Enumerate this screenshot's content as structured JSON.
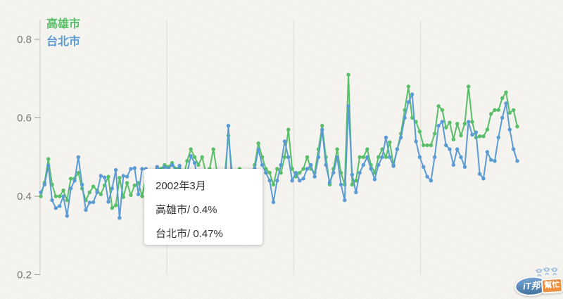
{
  "legend": {
    "items": [
      {
        "label": "高雄市",
        "color": "#58bf68"
      },
      {
        "label": "台北市",
        "color": "#5b9bd5"
      }
    ]
  },
  "tooltip": {
    "title": "2002年3月",
    "lines": [
      {
        "text": "高雄市/ 0.4%"
      },
      {
        "text": "台北市/ 0.47%"
      }
    ]
  },
  "watermark": {
    "primary": "iT邦",
    "secondary": "幫忙"
  },
  "colors": {
    "kaohsiung_green": "#58bf68",
    "taipei_blue": "#5b9bd5",
    "background": "#f5f4ef",
    "gridline": "#dcdcd8",
    "axis": "#c8c8c4",
    "tick": "#9a9a96",
    "tick_label": "#757575",
    "tooltip_text": "#333333",
    "logo_blue": "#44749f",
    "logo_orange": "#ee8f40"
  },
  "chart_data": {
    "type": "line",
    "title": "",
    "xlabel": "",
    "ylabel": "",
    "x_unit": "month (no x tick labels shown; hovered month is 2002年3月)",
    "ylim": [
      0.2,
      0.85
    ],
    "yticks": [
      {
        "label": "0.8",
        "value": 0.8
      },
      {
        "label": "0.6",
        "value": 0.6
      },
      {
        "label": "0.4",
        "value": 0.4
      },
      {
        "label": "0.2",
        "value": 0.2
      }
    ],
    "grid": "vertical gridlines only",
    "legend_position": "top-left",
    "vertical_gridline_indices": [
      33.6,
      67.4,
      101.2
    ],
    "highlighted_point": {
      "index": 27,
      "label": "2002年3月",
      "高雄市": 0.4,
      "台北市": 0.47
    },
    "series": [
      {
        "name": "高雄市",
        "color": "#58bf68",
        "values": [
          0.4,
          0.435,
          0.495,
          0.43,
          0.4,
          0.4,
          0.415,
          0.39,
          0.445,
          0.445,
          0.46,
          0.42,
          0.39,
          0.41,
          0.425,
          0.415,
          0.405,
          0.428,
          0.45,
          0.37,
          0.377,
          0.447,
          0.398,
          0.434,
          0.403,
          0.428,
          0.434,
          0.4,
          0.45,
          0.44,
          0.465,
          0.455,
          0.47,
          0.48,
          0.475,
          0.485,
          0.47,
          0.47,
          0.45,
          0.49,
          0.52,
          0.5,
          0.48,
          0.5,
          0.46,
          0.47,
          0.52,
          0.46,
          0.44,
          0.45,
          0.555,
          0.46,
          0.42,
          0.47,
          0.46,
          0.465,
          0.44,
          0.48,
          0.535,
          0.5,
          0.47,
          0.46,
          0.43,
          0.47,
          0.46,
          0.5,
          0.57,
          0.47,
          0.45,
          0.46,
          0.47,
          0.5,
          0.47,
          0.46,
          0.52,
          0.58,
          0.5,
          0.43,
          0.47,
          0.52,
          0.46,
          0.43,
          0.71,
          0.43,
          0.44,
          0.5,
          0.5,
          0.52,
          0.48,
          0.46,
          0.5,
          0.52,
          0.5,
          0.538,
          0.48,
          0.52,
          0.56,
          0.62,
          0.68,
          0.6,
          0.59,
          0.565,
          0.53,
          0.53,
          0.53,
          0.56,
          0.63,
          0.62,
          0.575,
          0.588,
          0.545,
          0.585,
          0.555,
          0.585,
          0.68,
          0.59,
          0.55,
          0.553,
          0.553,
          0.57,
          0.61,
          0.62,
          0.62,
          0.65,
          0.665,
          0.613,
          0.62,
          0.578
        ]
      },
      {
        "name": "台北市",
        "color": "#5b9bd5",
        "values": [
          0.41,
          0.43,
          0.478,
          0.39,
          0.37,
          0.375,
          0.4,
          0.35,
          0.42,
          0.44,
          0.5,
          0.43,
          0.365,
          0.384,
          0.385,
          0.41,
          0.452,
          0.448,
          0.386,
          0.42,
          0.467,
          0.345,
          0.452,
          0.45,
          0.47,
          0.472,
          0.405,
          0.47,
          0.47,
          0.44,
          0.46,
          0.475,
          0.465,
          0.475,
          0.47,
          0.48,
          0.465,
          0.478,
          0.44,
          0.46,
          0.503,
          0.485,
          0.43,
          0.45,
          0.42,
          0.44,
          0.465,
          0.44,
          0.43,
          0.4,
          0.58,
          0.42,
          0.44,
          0.46,
          0.43,
          0.445,
          0.42,
          0.47,
          0.52,
          0.48,
          0.46,
          0.44,
          0.385,
          0.44,
          0.48,
          0.54,
          0.5,
          0.44,
          0.46,
          0.44,
          0.445,
          0.47,
          0.48,
          0.45,
          0.5,
          0.57,
          0.48,
          0.435,
          0.46,
          0.5,
          0.43,
          0.39,
          0.63,
          0.455,
          0.41,
          0.46,
          0.48,
          0.5,
          0.47,
          0.443,
          0.48,
          0.5,
          0.55,
          0.5,
          0.477,
          0.52,
          0.55,
          0.6,
          0.64,
          0.66,
          0.54,
          0.5,
          0.475,
          0.45,
          0.44,
          0.5,
          0.58,
          0.59,
          0.53,
          0.52,
          0.48,
          0.52,
          0.5,
          0.475,
          0.59,
          0.557,
          0.563,
          0.457,
          0.445,
          0.513,
          0.493,
          0.49,
          0.55,
          0.6,
          0.637,
          0.57,
          0.52,
          0.49
        ]
      }
    ]
  }
}
